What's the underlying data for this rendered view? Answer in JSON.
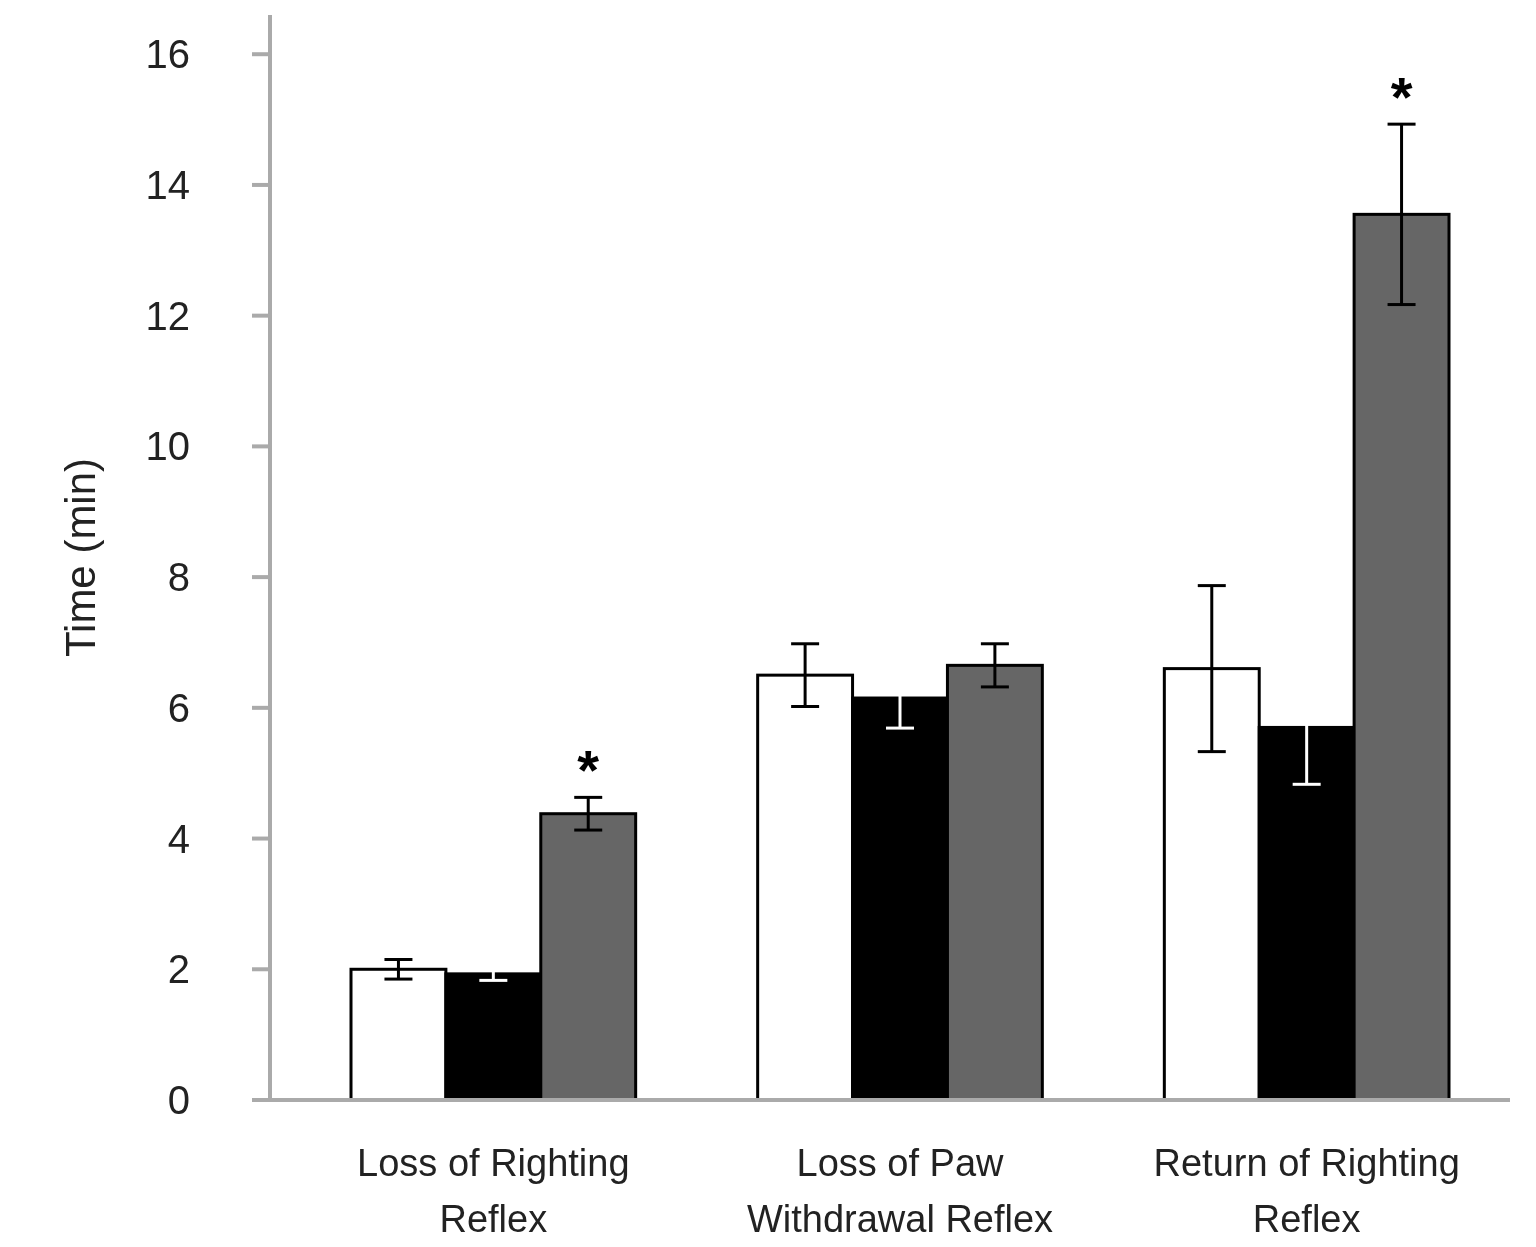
{
  "chart_data": {
    "type": "bar",
    "ylabel": "Time (min)",
    "categories": [
      "Loss of Righting Reflex",
      "Loss of Paw Withdrawal Reflex",
      "Return of Righting Reflex"
    ],
    "series": [
      {
        "color": "#ffffff",
        "values": [
          2.0,
          6.5,
          6.6
        ],
        "errors": [
          0.15,
          0.48,
          1.27
        ]
      },
      {
        "color": "#000000",
        "values": [
          1.93,
          6.15,
          5.7
        ],
        "errors": [
          0.1,
          0.46,
          0.87
        ]
      },
      {
        "color": "#666666",
        "values": [
          4.38,
          6.65,
          13.55
        ],
        "errors": [
          0.25,
          0.33,
          1.38
        ]
      }
    ],
    "ylim": [
      0,
      16.6
    ],
    "yticks": [
      0,
      2,
      4,
      6,
      8,
      10,
      12,
      14,
      16
    ],
    "grid": false,
    "annotations": [
      "*",
      "*"
    ]
  }
}
